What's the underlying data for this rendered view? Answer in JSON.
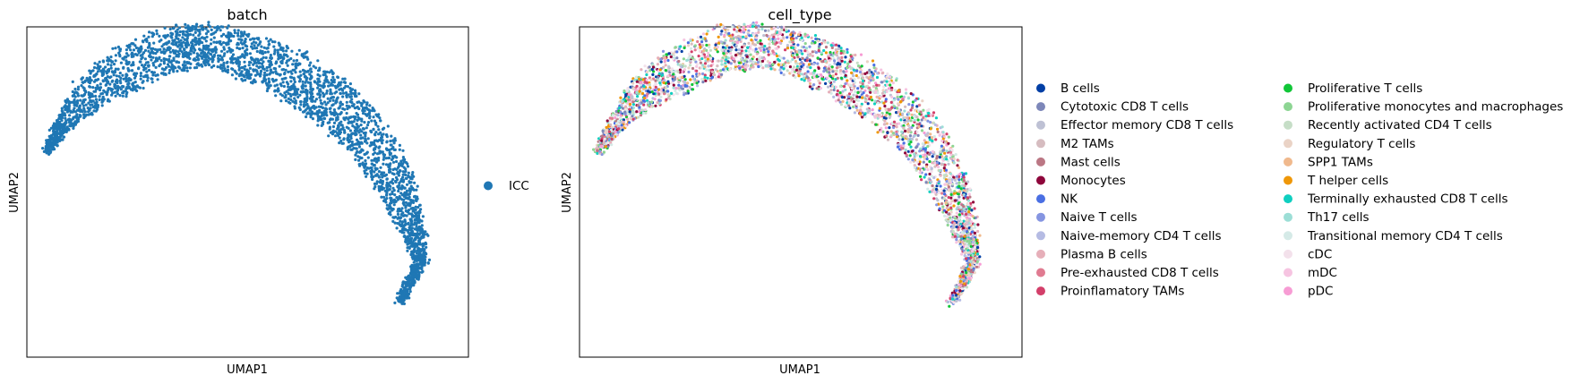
{
  "chart_data": [
    {
      "type": "scatter",
      "title": "batch",
      "xlabel": "UMAP1",
      "ylabel": "UMAP2",
      "grid": false,
      "legend": {
        "placement": "right",
        "entries": [
          {
            "name": "ICC",
            "color": "#1f77b4"
          }
        ]
      }
    },
    {
      "type": "scatter",
      "title": "cell_type",
      "xlabel": "UMAP1",
      "ylabel": "UMAP2",
      "grid": false,
      "legend": {
        "placement": "right",
        "columns": 2,
        "entries": [
          {
            "name": "B cells",
            "color": "#023fa5"
          },
          {
            "name": "Cytotoxic CD8 T cells",
            "color": "#7d87b9"
          },
          {
            "name": "Effector memory CD8 T cells",
            "color": "#bec1d4"
          },
          {
            "name": "M2 TAMs",
            "color": "#d6bcc0"
          },
          {
            "name": "Mast cells",
            "color": "#bb7784"
          },
          {
            "name": "Monocytes",
            "color": "#8e063b"
          },
          {
            "name": "NK",
            "color": "#4a6fe3"
          },
          {
            "name": "Naive T cells",
            "color": "#8595e1"
          },
          {
            "name": "Naive-memory CD4 T cells",
            "color": "#b5bbe3"
          },
          {
            "name": "Plasma B cells",
            "color": "#e6afb9"
          },
          {
            "name": "Pre-exhausted CD8 T cells",
            "color": "#e07b91"
          },
          {
            "name": "Proinflamatory TAMs",
            "color": "#d33f6a"
          },
          {
            "name": "Proliferative T cells",
            "color": "#11c638"
          },
          {
            "name": "Proliferative monocytes and macrophages",
            "color": "#8dd593"
          },
          {
            "name": "Recently activated CD4 T cells",
            "color": "#c6dec7"
          },
          {
            "name": "Regulatory T cells",
            "color": "#ead3c6"
          },
          {
            "name": "SPP1 TAMs",
            "color": "#f0b98d"
          },
          {
            "name": "T helper cells",
            "color": "#ef9708"
          },
          {
            "name": "Terminally exhausted CD8 T cells",
            "color": "#0fcfc0"
          },
          {
            "name": "Th17 cells",
            "color": "#9cded6"
          },
          {
            "name": "Transitional memory CD4 T cells",
            "color": "#d5eae7"
          },
          {
            "name": "cDC",
            "color": "#f3e1eb"
          },
          {
            "name": "mDC",
            "color": "#f6c4e1"
          },
          {
            "name": "pDC",
            "color": "#f79cd4"
          }
        ]
      }
    }
  ]
}
